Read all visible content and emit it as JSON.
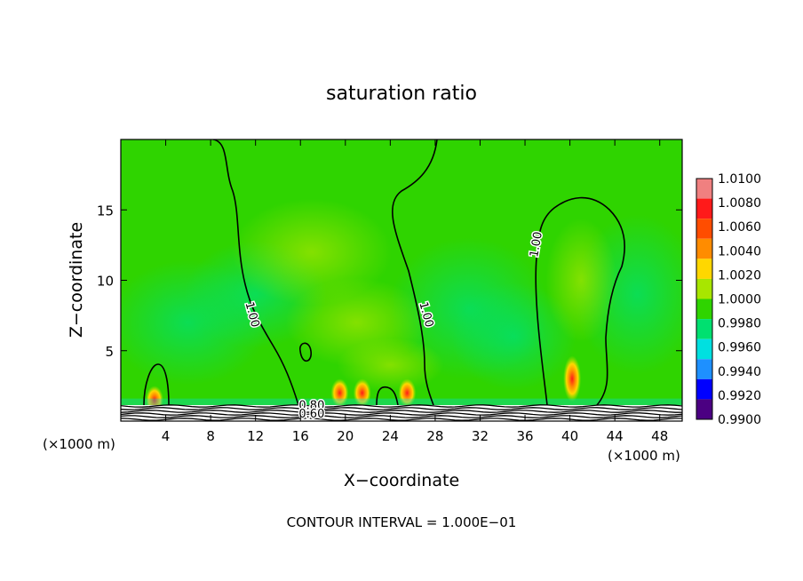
{
  "chart_data": {
    "type": "heatmap",
    "title": "saturation ratio",
    "xlabel": "X−coordinate",
    "ylabel": "Z−coordinate",
    "x_unit_left": "(×1000 m)",
    "x_unit_right": "(×1000 m)",
    "xlim": [
      0,
      50
    ],
    "ylim": [
      0,
      20
    ],
    "x_ticks": [
      4,
      8,
      12,
      16,
      20,
      24,
      28,
      32,
      36,
      40,
      44,
      48
    ],
    "y_ticks": [
      5,
      10,
      15
    ],
    "footer": "CONTOUR INTERVAL = 1.000E−01",
    "colorbar": {
      "levels": [
        "1.0100",
        "1.0080",
        "1.0060",
        "1.0040",
        "1.0020",
        "1.0000",
        "0.9980",
        "0.9960",
        "0.9940",
        "0.9920",
        "0.9900"
      ],
      "colors": [
        "#f08080",
        "#ff1a1a",
        "#ff4d00",
        "#ff8c00",
        "#ffd700",
        "#a8e600",
        "#2fd400",
        "#00e070",
        "#00e0e0",
        "#1e90ff",
        "#0000ff",
        "#4b0082"
      ]
    },
    "background_value": 1.0,
    "contour_labels": [
      {
        "text": "1.00",
        "x": 11.4,
        "z": 7.5
      },
      {
        "text": "1.00",
        "x": 26.9,
        "z": 7.5
      },
      {
        "text": "1.00",
        "x": 37.3,
        "z": 12.5
      },
      {
        "text": "0.80",
        "x": 17.0,
        "z": 0.85
      },
      {
        "text": "0.60",
        "x": 17.0,
        "z": 0.25
      }
    ],
    "hotspots": [
      {
        "x": 3.0,
        "z": 1.5,
        "value": 1.006
      },
      {
        "x": 19.5,
        "z": 2.0,
        "value": 1.008
      },
      {
        "x": 21.5,
        "z": 2.0,
        "value": 1.008
      },
      {
        "x": 25.5,
        "z": 2.0,
        "value": 1.007
      },
      {
        "x": 40.2,
        "z": 3.0,
        "value": 1.005
      }
    ]
  }
}
